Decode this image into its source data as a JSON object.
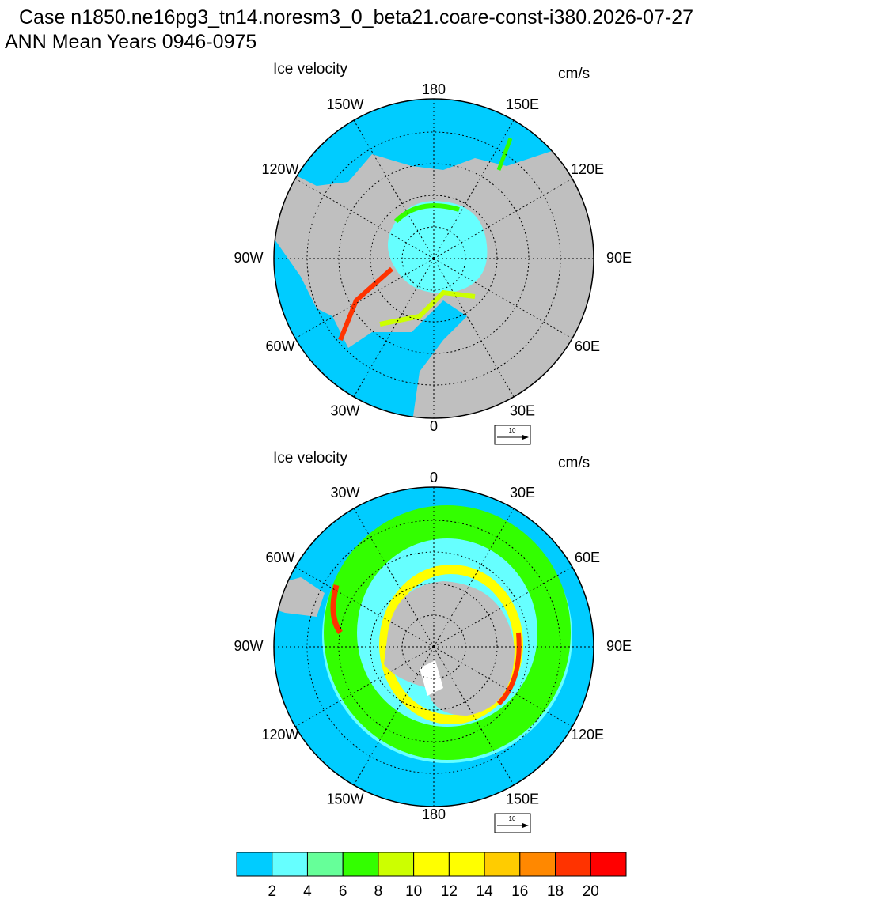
{
  "header": {
    "case": "Case n1850.ne16pg3_tn14.noresm3_0_beta21.coare-const-i380.2026-07-27",
    "period": "ANN Mean   Years 0946-0975"
  },
  "maps": [
    {
      "title": "Ice velocity",
      "units": "cm/s",
      "hemisphere": "north",
      "reference_vector": "10",
      "meridians": [
        {
          "value": 180,
          "label": "180"
        },
        {
          "value": -150,
          "label": "150W"
        },
        {
          "value": 150,
          "label": "150E"
        },
        {
          "value": -120,
          "label": "120W"
        },
        {
          "value": 120,
          "label": "120E"
        },
        {
          "value": -90,
          "label": "90W"
        },
        {
          "value": 90,
          "label": "90E"
        },
        {
          "value": -60,
          "label": "60W"
        },
        {
          "value": 60,
          "label": "60E"
        },
        {
          "value": -30,
          "label": "30W"
        },
        {
          "value": 30,
          "label": "30E"
        },
        {
          "value": 0,
          "label": "0"
        }
      ]
    },
    {
      "title": "Ice velocity",
      "units": "cm/s",
      "hemisphere": "south",
      "reference_vector": "10",
      "meridians": [
        {
          "value": 0,
          "label": "0"
        },
        {
          "value": -30,
          "label": "30W"
        },
        {
          "value": 30,
          "label": "30E"
        },
        {
          "value": -60,
          "label": "60W"
        },
        {
          "value": 60,
          "label": "60E"
        },
        {
          "value": -90,
          "label": "90W"
        },
        {
          "value": 90,
          "label": "90E"
        },
        {
          "value": -120,
          "label": "120W"
        },
        {
          "value": 120,
          "label": "120E"
        },
        {
          "value": -150,
          "label": "150W"
        },
        {
          "value": 150,
          "label": "150E"
        },
        {
          "value": 180,
          "label": "180"
        }
      ]
    }
  ],
  "colorbar": {
    "levels": [
      2,
      4,
      6,
      8,
      10,
      12,
      14,
      16,
      18,
      20
    ],
    "colors": [
      "#00ccff",
      "#66ffff",
      "#66ff99",
      "#33ff00",
      "#ccff00",
      "#ffff00",
      "#ffff00",
      "#ffcc00",
      "#ff8800",
      "#ff3300",
      "#ff0000"
    ]
  }
}
